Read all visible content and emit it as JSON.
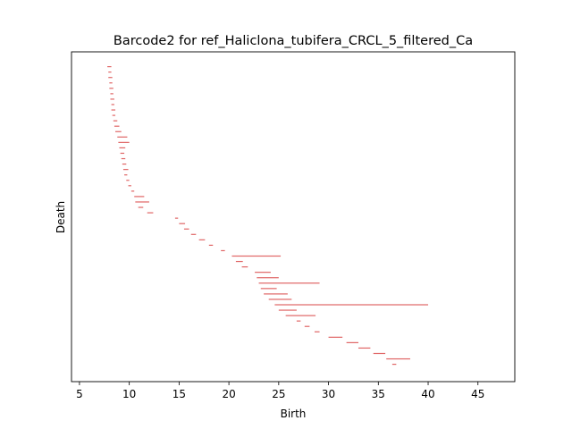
{
  "chart_data": {
    "type": "barcode",
    "title": "Barcode2 for ref_Haliclona_tubifera_CRCL_5_filtered_Ca",
    "xlabel": "Birth",
    "ylabel": "Death",
    "xlim": [
      4.2,
      48.7
    ],
    "x_ticks": [
      5,
      10,
      15,
      20,
      25,
      30,
      35,
      40,
      45
    ],
    "x_tick_labels": [
      "5",
      "10",
      "15",
      "20",
      "25",
      "30",
      "35",
      "40",
      "45"
    ],
    "y_tick_labels": [],
    "grid": false,
    "bar_color": "#e06666",
    "bar_count_note": "one thin horizontal bar per persistence interval, ordered by birth",
    "intervals": [
      [
        7.8,
        8.2
      ],
      [
        7.9,
        8.2
      ],
      [
        7.9,
        8.3
      ],
      [
        8.0,
        8.3
      ],
      [
        8.0,
        8.4
      ],
      [
        8.1,
        8.4
      ],
      [
        8.1,
        8.5
      ],
      [
        8.2,
        8.5
      ],
      [
        8.2,
        8.6
      ],
      [
        8.3,
        8.6
      ],
      [
        8.4,
        8.8
      ],
      [
        8.5,
        9.0
      ],
      [
        8.6,
        9.2
      ],
      [
        8.8,
        9.8
      ],
      [
        8.9,
        10.0
      ],
      [
        9.0,
        9.6
      ],
      [
        9.1,
        9.5
      ],
      [
        9.2,
        9.6
      ],
      [
        9.3,
        9.7
      ],
      [
        9.4,
        9.9
      ],
      [
        9.5,
        9.8
      ],
      [
        9.7,
        10.0
      ],
      [
        9.9,
        10.2
      ],
      [
        10.2,
        10.5
      ],
      [
        10.5,
        11.5
      ],
      [
        10.6,
        12.0
      ],
      [
        10.9,
        11.4
      ],
      [
        11.8,
        12.4
      ],
      [
        14.6,
        14.9
      ],
      [
        15.0,
        15.6
      ],
      [
        15.5,
        16.0
      ],
      [
        16.2,
        16.7
      ],
      [
        17.0,
        17.6
      ],
      [
        18.0,
        18.4
      ],
      [
        19.2,
        19.6
      ],
      [
        20.3,
        25.2
      ],
      [
        20.7,
        21.4
      ],
      [
        21.3,
        21.9
      ],
      [
        22.6,
        24.2
      ],
      [
        22.8,
        25.0
      ],
      [
        23.0,
        29.1
      ],
      [
        23.2,
        24.8
      ],
      [
        23.5,
        25.9
      ],
      [
        24.0,
        26.3
      ],
      [
        24.6,
        40.0
      ],
      [
        25.0,
        26.8
      ],
      [
        25.7,
        28.7
      ],
      [
        26.8,
        27.2
      ],
      [
        27.6,
        28.1
      ],
      [
        28.6,
        29.1
      ],
      [
        30.0,
        31.4
      ],
      [
        31.8,
        33.0
      ],
      [
        33.0,
        34.2
      ],
      [
        34.5,
        35.7
      ],
      [
        35.8,
        38.2
      ],
      [
        36.4,
        36.8
      ]
    ]
  }
}
